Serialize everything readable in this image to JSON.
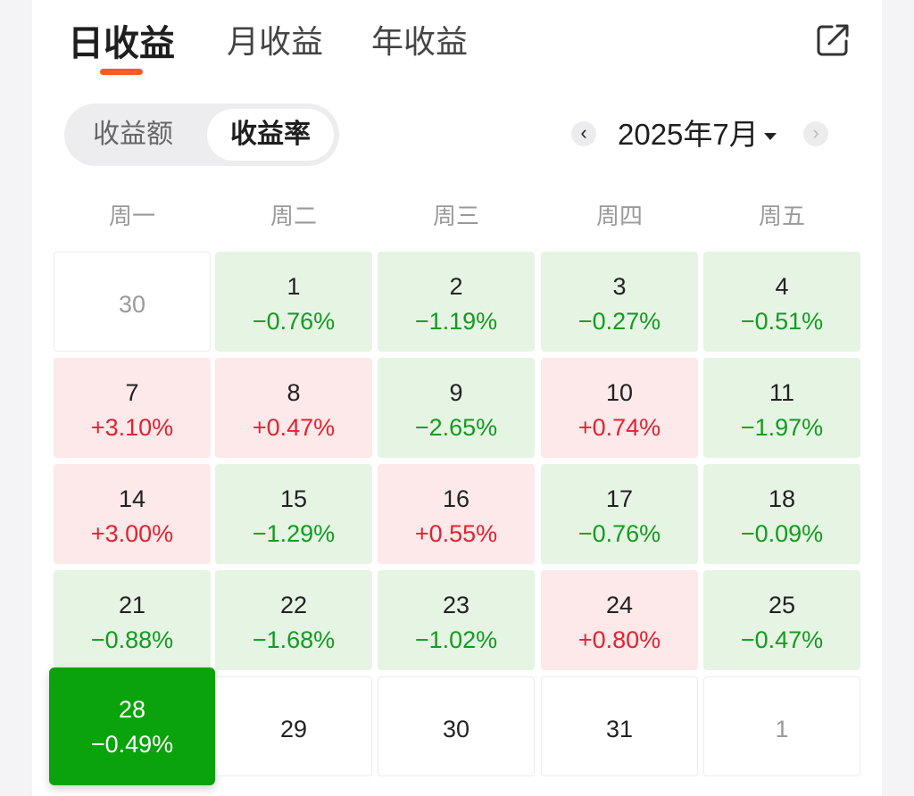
{
  "tabs": [
    {
      "label": "日收益",
      "active": true
    },
    {
      "label": "月收益",
      "active": false
    },
    {
      "label": "年收益",
      "active": false
    }
  ],
  "share_icon": "share-icon",
  "segment": {
    "left": "收益额",
    "right": "收益率",
    "selected": "收益率"
  },
  "month": {
    "label": "2025年7月",
    "prev": "‹",
    "next": "›"
  },
  "weekdays": [
    "周一",
    "周二",
    "周三",
    "周四",
    "周五"
  ],
  "colors": {
    "positive": "#e02430",
    "negative": "#139b1f",
    "accent": "#ff5a1f",
    "selected": "#0ba30b"
  },
  "calendar": [
    [
      {
        "day": "30",
        "value": "",
        "type": "other"
      },
      {
        "day": "1",
        "value": "−0.76%",
        "type": "neg"
      },
      {
        "day": "2",
        "value": "−1.19%",
        "type": "neg"
      },
      {
        "day": "3",
        "value": "−0.27%",
        "type": "neg"
      },
      {
        "day": "4",
        "value": "−0.51%",
        "type": "neg"
      }
    ],
    [
      {
        "day": "7",
        "value": "+3.10%",
        "type": "pos"
      },
      {
        "day": "8",
        "value": "+0.47%",
        "type": "pos"
      },
      {
        "day": "9",
        "value": "−2.65%",
        "type": "neg"
      },
      {
        "day": "10",
        "value": "+0.74%",
        "type": "pos"
      },
      {
        "day": "11",
        "value": "−1.97%",
        "type": "neg"
      }
    ],
    [
      {
        "day": "14",
        "value": "+3.00%",
        "type": "pos"
      },
      {
        "day": "15",
        "value": "−1.29%",
        "type": "neg"
      },
      {
        "day": "16",
        "value": "+0.55%",
        "type": "pos"
      },
      {
        "day": "17",
        "value": "−0.76%",
        "type": "neg"
      },
      {
        "day": "18",
        "value": "−0.09%",
        "type": "neg"
      }
    ],
    [
      {
        "day": "21",
        "value": "−0.88%",
        "type": "neg"
      },
      {
        "day": "22",
        "value": "−1.68%",
        "type": "neg"
      },
      {
        "day": "23",
        "value": "−1.02%",
        "type": "neg"
      },
      {
        "day": "24",
        "value": "+0.80%",
        "type": "pos"
      },
      {
        "day": "25",
        "value": "−0.47%",
        "type": "neg"
      }
    ],
    [
      {
        "day": "28",
        "value": "−0.49%",
        "type": "selected"
      },
      {
        "day": "29",
        "value": "",
        "type": "blank"
      },
      {
        "day": "30",
        "value": "",
        "type": "blank"
      },
      {
        "day": "31",
        "value": "",
        "type": "blank"
      },
      {
        "day": "1",
        "value": "",
        "type": "other"
      }
    ]
  ]
}
